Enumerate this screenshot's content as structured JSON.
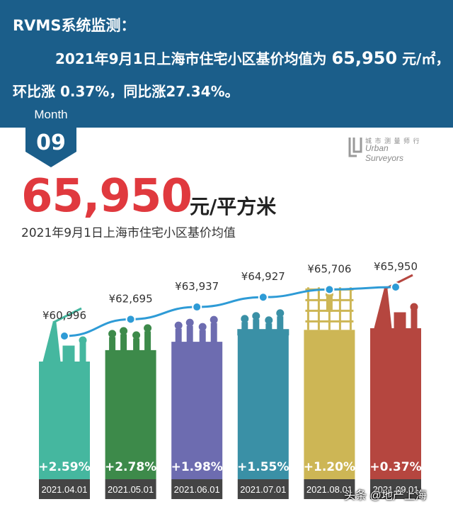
{
  "header": {
    "line1": "RVMS系统监测：",
    "line2_prefix": "2021年9月1日上海市住宅小区基价均值为",
    "line2_value": "65,950",
    "line2_unit": "元/㎡，",
    "line3": "环比涨 0.37%，同比涨27.34%。"
  },
  "badge": {
    "label": "Month",
    "value": "09"
  },
  "logo": {
    "line1": "城 市 测 量 师 行",
    "line2": "Urban Surveyors"
  },
  "headline": {
    "price": "65,950",
    "unit": "元/平方米",
    "subtitle": "2021年9月1日上海市住宅小区基价均值"
  },
  "chart_data": {
    "type": "bar",
    "title": "2021年9月1日上海市住宅小区基价均值",
    "categories": [
      "2021.04.01",
      "2021.05.01",
      "2021.06.01",
      "2021.07.01",
      "2021.08.01",
      "2021.09.01"
    ],
    "values": [
      60996,
      62695,
      63937,
      64927,
      65706,
      65950
    ],
    "value_labels": [
      "¥60,996",
      "¥62,695",
      "¥63,937",
      "¥64,927",
      "¥65,706",
      "¥65,950"
    ],
    "changes": [
      "+2.59%",
      "+2.78%",
      "+1.98%",
      "+1.55%",
      "+1.20%",
      "+0.37%"
    ],
    "bar_colors": [
      "#45b79f",
      "#3d8a4a",
      "#6d6cb0",
      "#3a90a6",
      "#cdb655",
      "#b5463f"
    ],
    "line_color": "#2e9bd6",
    "label_bg": "#444444",
    "ylim": [
      55000,
      67000
    ]
  },
  "watermark": "头条 @地产上海"
}
